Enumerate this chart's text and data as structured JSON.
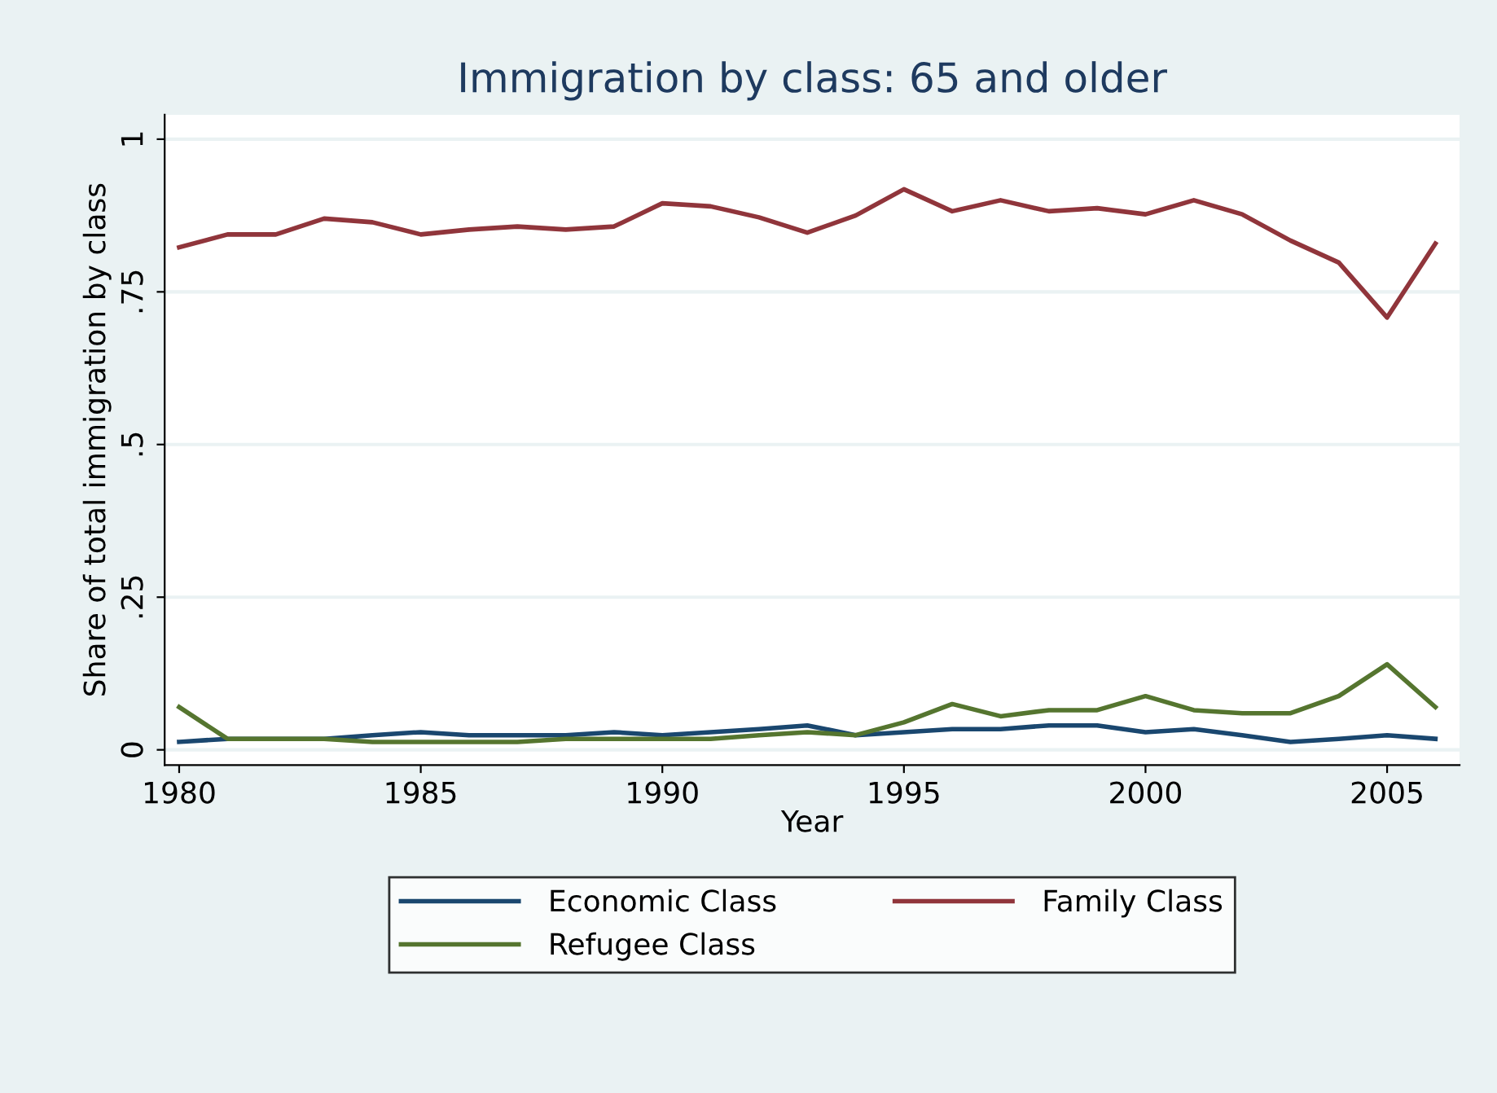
{
  "chart_data": {
    "type": "line",
    "title": "Immigration by class: 65 and older",
    "xlabel": "Year",
    "ylabel": "Share of total immigration by class",
    "x": [
      1980,
      1981,
      1982,
      1983,
      1984,
      1985,
      1986,
      1987,
      1988,
      1989,
      1990,
      1991,
      1992,
      1993,
      1994,
      1995,
      1996,
      1997,
      1998,
      1999,
      2000,
      2001,
      2002,
      2003,
      2004,
      2005,
      2006
    ],
    "series": [
      {
        "name": "Economic Class",
        "color": "#1a476f",
        "values": [
          0.013,
          0.018,
          0.018,
          0.018,
          0.024,
          0.029,
          0.024,
          0.024,
          0.024,
          0.029,
          0.024,
          0.029,
          0.034,
          0.04,
          0.024,
          0.029,
          0.034,
          0.034,
          0.04,
          0.04,
          0.029,
          0.034,
          0.024,
          0.013,
          0.018,
          0.024,
          0.018
        ]
      },
      {
        "name": "Family Class",
        "color": "#90353b",
        "values": [
          0.823,
          0.844,
          0.844,
          0.87,
          0.864,
          0.844,
          0.852,
          0.857,
          0.852,
          0.857,
          0.895,
          0.89,
          0.872,
          0.847,
          0.875,
          0.918,
          0.882,
          0.9,
          0.882,
          0.887,
          0.877,
          0.9,
          0.877,
          0.834,
          0.798,
          0.708,
          0.829
        ]
      },
      {
        "name": "Refugee Class",
        "color": "#55752f",
        "values": [
          0.07,
          0.018,
          0.018,
          0.018,
          0.013,
          0.013,
          0.013,
          0.013,
          0.018,
          0.018,
          0.018,
          0.018,
          0.024,
          0.029,
          0.024,
          0.045,
          0.075,
          0.055,
          0.065,
          0.065,
          0.088,
          0.065,
          0.06,
          0.06,
          0.088,
          0.14,
          0.07
        ]
      }
    ],
    "xlim": [
      1979.7,
      2006.5
    ],
    "ylim": [
      -0.025,
      1.04
    ],
    "xticks": [
      1980,
      1985,
      1990,
      1995,
      2000,
      2005
    ],
    "yticks": [
      0,
      {
        "value": 0.25,
        "label": ".25"
      },
      {
        "value": 0.5,
        "label": ".5"
      },
      {
        "value": 0.75,
        "label": ".75"
      },
      1
    ],
    "grid": "y",
    "legend": "bottom",
    "marker": "none",
    "line_style": "solid"
  }
}
